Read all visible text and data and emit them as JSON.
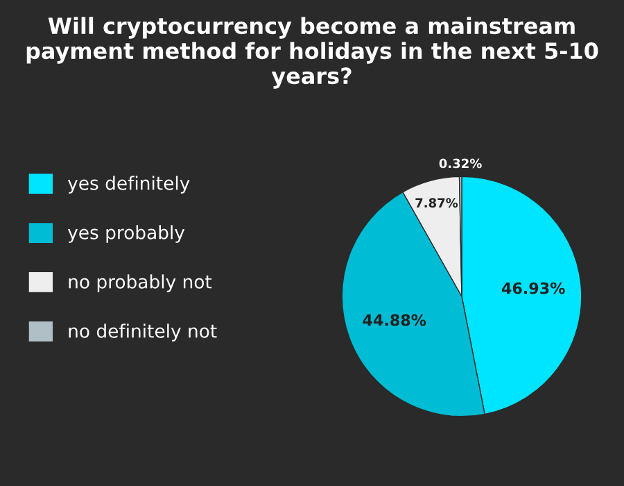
{
  "chart_data": {
    "type": "pie",
    "title": "Will cryptocurrency become a mainstream payment method for holidays in the next 5-10 years?",
    "categories": [
      "yes definitely",
      "yes probably",
      "no probably not",
      "no definitely not"
    ],
    "values": [
      46.93,
      44.88,
      7.87,
      0.32
    ],
    "value_labels": [
      "46.93%",
      "44.88%",
      "7.87%",
      "0.32%"
    ],
    "colors": [
      "#00e5ff",
      "#00bcd4",
      "#eeeeee",
      "#b0bec5"
    ],
    "legend": "left"
  }
}
